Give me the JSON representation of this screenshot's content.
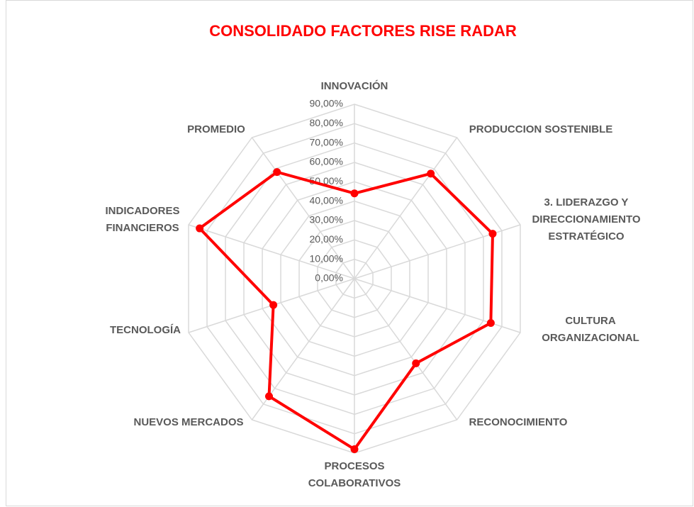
{
  "chart_data": {
    "type": "radar",
    "title": "CONSOLIDADO FACTORES RISE RADAR",
    "categories": [
      "INNOVACIÓN",
      "PRODUCCION SOSTENIBLE",
      "3. LIDERAZGO Y DIRECCIONAMIENTO ESTRATÉGICO",
      "CULTURA ORGANIZACIONAL",
      "RECONOCIMIENTO",
      "PROCESOS COLABORATIVOS",
      "NUEVOS MERCADOS",
      "TECNOLOGÍA",
      "INDICADORES FINANCIEROS",
      "PROMEDIO"
    ],
    "values": [
      44,
      67,
      75,
      74,
      54,
      88,
      75,
      44,
      84,
      68
    ],
    "color": "#ff0000",
    "ylim": [
      0,
      90
    ],
    "yticks": [
      {
        "value": 0,
        "label": "0,00%"
      },
      {
        "value": 10,
        "label": "10,00%"
      },
      {
        "value": 20,
        "label": "20,00%"
      },
      {
        "value": 30,
        "label": "30,00%"
      },
      {
        "value": 40,
        "label": "40,00%"
      },
      {
        "value": 50,
        "label": "50,00%"
      },
      {
        "value": 60,
        "label": "60,00%"
      },
      {
        "value": 70,
        "label": "70,00%"
      },
      {
        "value": 80,
        "label": "80,00%"
      },
      {
        "value": 90,
        "label": "90,00%"
      }
    ],
    "grid": true
  }
}
